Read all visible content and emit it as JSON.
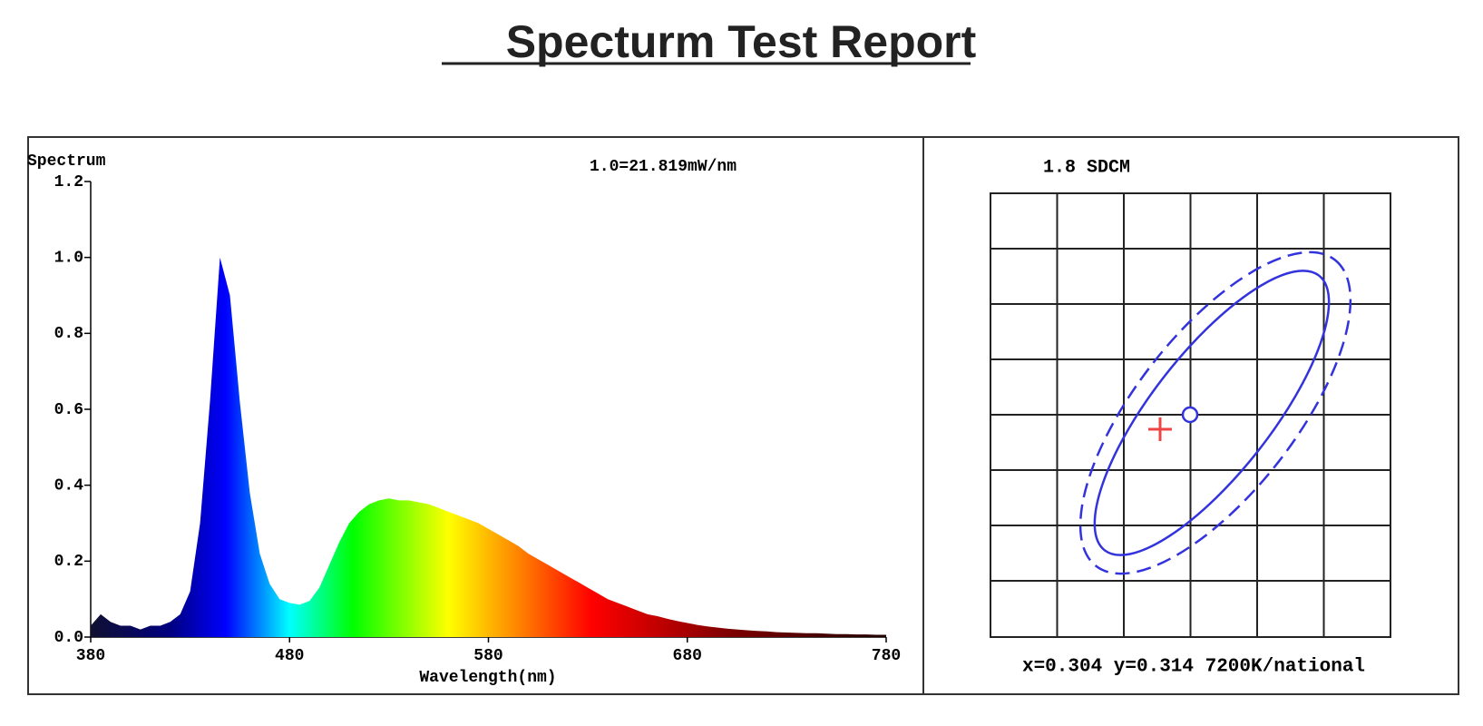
{
  "title": "Specturm Test Report",
  "chart_data": {
    "type": "area",
    "y_label": "Spectrum",
    "annotation": "1.0=21.819mW/nm",
    "x_label": "Wavelength(nm)",
    "x": [
      380,
      385,
      390,
      395,
      400,
      405,
      410,
      415,
      420,
      425,
      430,
      435,
      440,
      445,
      450,
      455,
      460,
      465,
      470,
      475,
      480,
      485,
      490,
      495,
      500,
      505,
      510,
      515,
      520,
      525,
      530,
      535,
      540,
      545,
      550,
      555,
      560,
      565,
      570,
      575,
      580,
      585,
      590,
      595,
      600,
      605,
      610,
      615,
      620,
      625,
      630,
      635,
      640,
      645,
      650,
      655,
      660,
      665,
      670,
      675,
      680,
      685,
      690,
      695,
      700,
      705,
      710,
      715,
      720,
      725,
      730,
      735,
      740,
      745,
      750,
      755,
      760,
      765,
      770,
      775,
      780
    ],
    "values": [
      0.03,
      0.06,
      0.04,
      0.03,
      0.03,
      0.02,
      0.03,
      0.03,
      0.04,
      0.06,
      0.12,
      0.3,
      0.62,
      1.0,
      0.9,
      0.62,
      0.38,
      0.22,
      0.14,
      0.1,
      0.09,
      0.085,
      0.095,
      0.13,
      0.19,
      0.25,
      0.3,
      0.33,
      0.35,
      0.36,
      0.365,
      0.36,
      0.36,
      0.355,
      0.35,
      0.34,
      0.33,
      0.32,
      0.31,
      0.3,
      0.285,
      0.27,
      0.255,
      0.24,
      0.22,
      0.205,
      0.19,
      0.175,
      0.16,
      0.145,
      0.13,
      0.115,
      0.1,
      0.09,
      0.08,
      0.07,
      0.06,
      0.055,
      0.048,
      0.042,
      0.037,
      0.032,
      0.028,
      0.025,
      0.022,
      0.02,
      0.018,
      0.016,
      0.015,
      0.013,
      0.012,
      0.011,
      0.01,
      0.01,
      0.009,
      0.008,
      0.008,
      0.007,
      0.007,
      0.006,
      0.006
    ],
    "xlim": [
      380,
      780
    ],
    "xticks": [
      380,
      480,
      580,
      680,
      780
    ],
    "ylim": [
      0,
      1.2
    ],
    "yticks": [
      {
        "value": 0,
        "label": "0.0"
      },
      0.2,
      0.4,
      0.6,
      0.8,
      {
        "value": 1,
        "label": "1.0"
      },
      1.2
    ]
  },
  "chromaticity": {
    "sdcm_label": "1.8 SDCM",
    "coordinates_label": "x=0.304 y=0.314 7200K/national"
  }
}
